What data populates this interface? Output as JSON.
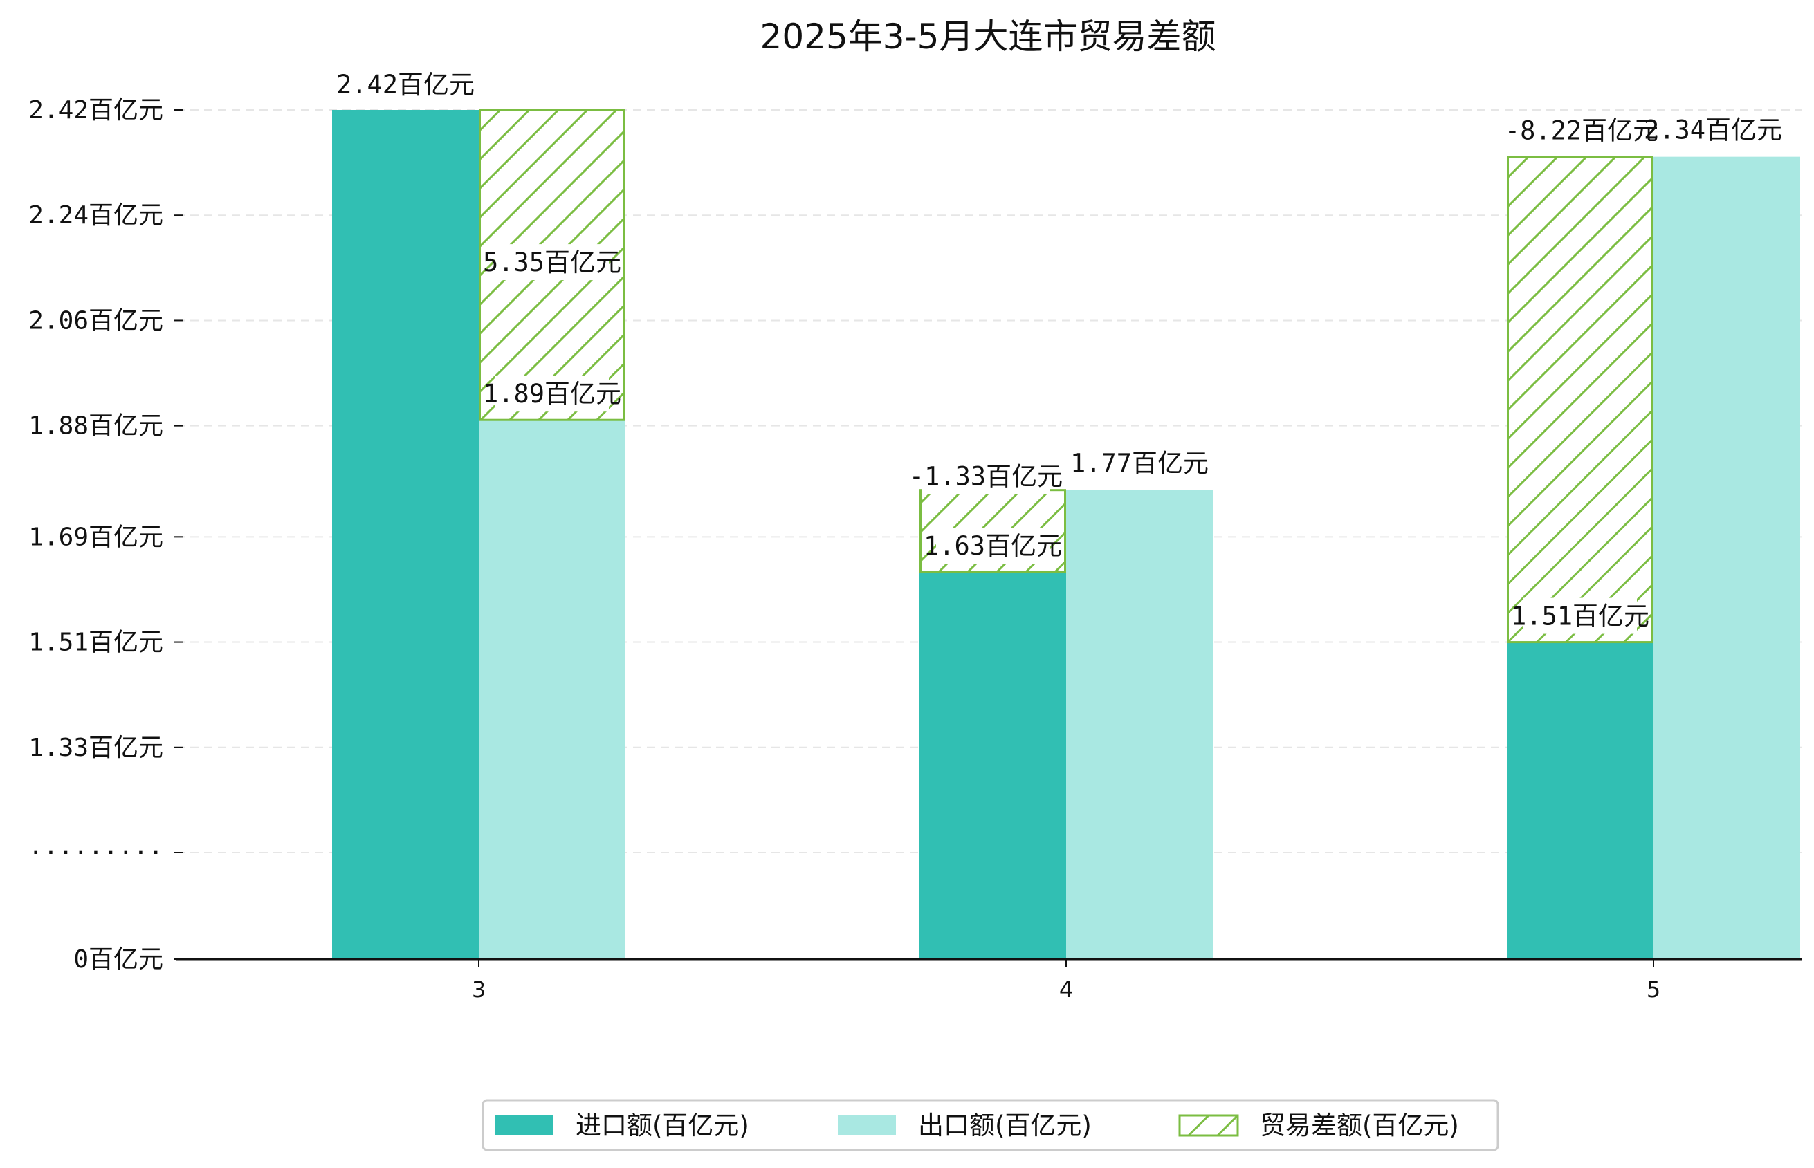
{
  "chart_data": {
    "type": "bar",
    "title": "2025年3-5月大连市贸易差额",
    "categories": [
      "3",
      "4",
      "5"
    ],
    "unit": "百亿元",
    "y_tick_labels": [
      "0百亿元",
      "·········",
      "1.33百亿元",
      "1.51百亿元",
      "1.69百亿元",
      "1.88百亿元",
      "2.06百亿元",
      "2.24百亿元",
      "2.42百亿元"
    ],
    "y_tick_values": [
      0,
      1.15,
      1.33,
      1.51,
      1.69,
      1.88,
      2.06,
      2.24,
      2.42
    ],
    "axis_break": true,
    "ylim": [
      0,
      2.42
    ],
    "grid": "horizontal dashed",
    "legend_position": "bottom-center",
    "series": [
      {
        "name": "进口额(百亿元)",
        "color": "#31bfb3",
        "values": [
          2.42,
          1.63,
          1.51
        ],
        "labels": [
          "2.42百亿元",
          "1.63百亿元",
          "1.51百亿元"
        ]
      },
      {
        "name": "出口额(百亿元)",
        "color": "#a9e8e2",
        "values": [
          1.89,
          1.77,
          2.34
        ],
        "labels": [
          "1.89百亿元",
          "1.77百亿元",
          "2.34百亿元"
        ]
      },
      {
        "name": "贸易差额(百亿元)",
        "color": "#7bbd42",
        "pattern": "hatched",
        "values": [
          5.35,
          -1.33,
          -8.22
        ],
        "labels": [
          "5.35百亿元",
          "-1.33百亿元",
          "-8.22百亿元"
        ]
      }
    ]
  }
}
